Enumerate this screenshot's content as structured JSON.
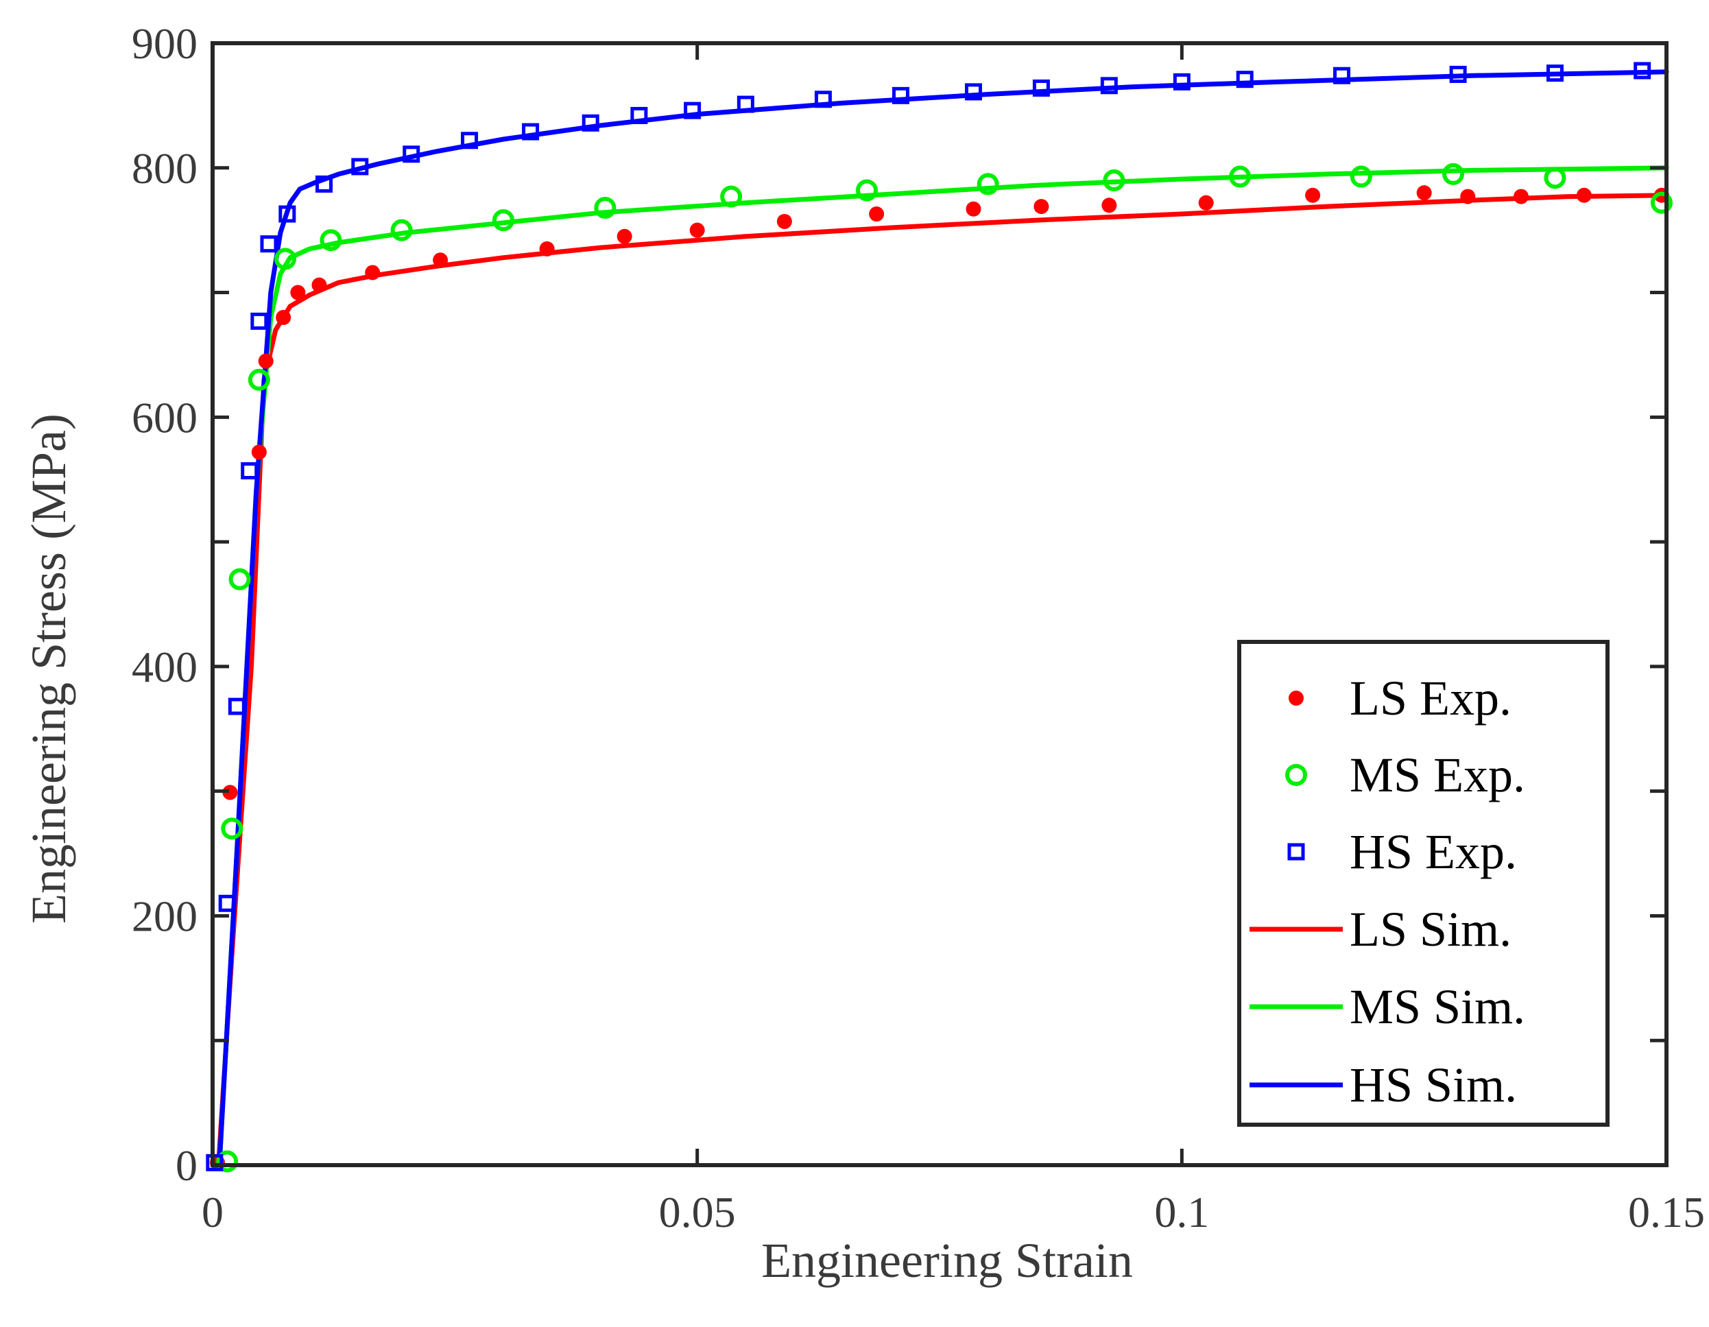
{
  "chart_data": {
    "type": "line",
    "xlabel": "Engineering Strain",
    "ylabel": "Engineering Stress (MPa)",
    "xlim": [
      0,
      0.15
    ],
    "ylim": [
      0,
      900
    ],
    "xticks": [
      0,
      0.05,
      0.1,
      0.15
    ],
    "xtick_labels": [
      "0",
      "0.05",
      "0.1",
      "0.15"
    ],
    "yticks": [
      0,
      200,
      400,
      600,
      800
    ],
    "ytick_labels": [
      "0",
      "200",
      "400",
      "600",
      "800"
    ],
    "y_top_label": "900",
    "y_minor_ticks": [
      100,
      300,
      500,
      700
    ],
    "legend_position": "bottom-right",
    "colors": {
      "LS": "#ff0000",
      "MS": "#00ee00",
      "HS": "#0000ff"
    },
    "series": [
      {
        "name": "LS Exp.",
        "kind": "scatter",
        "marker": "filled-circle",
        "color": "#ff0000",
        "x": [
          0.0005,
          0.0018,
          0.0048,
          0.0055,
          0.0073,
          0.0088,
          0.011,
          0.0165,
          0.0235,
          0.0345,
          0.0425,
          0.05,
          0.059,
          0.0685,
          0.0785,
          0.0855,
          0.0925,
          0.1025,
          0.1135,
          0.125,
          0.1295,
          0.135,
          0.1415,
          0.1495
        ],
        "y": [
          2,
          299,
          572,
          645,
          680,
          700,
          706,
          716,
          726,
          735,
          745,
          750,
          757,
          763,
          767,
          769,
          770,
          772,
          778,
          780,
          777,
          777,
          778,
          778
        ]
      },
      {
        "name": "MS Exp.",
        "kind": "scatter",
        "marker": "open-circle",
        "color": "#00ee00",
        "x": [
          0.0015,
          0.002,
          0.0028,
          0.0048,
          0.0075,
          0.0122,
          0.0195,
          0.03,
          0.0405,
          0.0535,
          0.0675,
          0.08,
          0.093,
          0.106,
          0.1185,
          0.128,
          0.1385,
          0.1495
        ],
        "y": [
          3,
          270,
          470,
          630,
          727,
          742,
          750,
          758,
          768,
          777,
          782,
          787,
          790,
          793,
          793,
          795,
          792,
          772
        ]
      },
      {
        "name": "HS Exp.",
        "kind": "scatter",
        "marker": "open-square",
        "color": "#0000ff",
        "x": [
          0.0002,
          0.0015,
          0.0025,
          0.0038,
          0.0048,
          0.0058,
          0.0077,
          0.0115,
          0.0152,
          0.0205,
          0.0265,
          0.0328,
          0.039,
          0.044,
          0.0495,
          0.055,
          0.063,
          0.071,
          0.0785,
          0.0855,
          0.0925,
          0.1,
          0.1065,
          0.1165,
          0.1285,
          0.1385,
          0.1475
        ],
        "y": [
          2,
          210,
          368,
          557,
          677,
          739,
          763,
          787,
          801,
          811,
          822,
          829,
          836,
          842,
          846,
          851,
          855,
          858,
          861,
          864,
          866,
          869,
          871,
          874,
          875,
          876,
          878
        ]
      },
      {
        "name": "LS Sim.",
        "kind": "line",
        "color": "#ff0000",
        "x": [
          0.0006,
          0.002,
          0.004,
          0.0053,
          0.0065,
          0.008,
          0.01,
          0.013,
          0.017,
          0.023,
          0.03,
          0.04,
          0.055,
          0.07,
          0.085,
          0.1,
          0.115,
          0.13,
          0.14,
          0.15
        ],
        "y": [
          0,
          170,
          400,
          630,
          670,
          689,
          698,
          708,
          714,
          721,
          728,
          736,
          745,
          752,
          758,
          763,
          769,
          774,
          777,
          778
        ]
      },
      {
        "name": "MS Sim.",
        "kind": "line",
        "color": "#00ee00",
        "x": [
          0.0007,
          0.0025,
          0.0045,
          0.006,
          0.007,
          0.008,
          0.01,
          0.013,
          0.02,
          0.03,
          0.04,
          0.055,
          0.07,
          0.085,
          0.1,
          0.115,
          0.13,
          0.14,
          0.15
        ],
        "y": [
          0,
          250,
          540,
          680,
          715,
          728,
          735,
          740,
          748,
          756,
          764,
          772,
          779,
          786,
          791,
          795,
          798,
          799,
          800
        ]
      },
      {
        "name": "HS Sim.",
        "kind": "line",
        "color": "#0000ff",
        "x": [
          0.0007,
          0.0025,
          0.0045,
          0.006,
          0.007,
          0.008,
          0.009,
          0.0105,
          0.013,
          0.017,
          0.023,
          0.03,
          0.04,
          0.05,
          0.065,
          0.08,
          0.095,
          0.11,
          0.13,
          0.15
        ],
        "y": [
          0,
          250,
          540,
          700,
          748,
          772,
          783,
          788,
          795,
          803,
          813,
          823,
          834,
          843,
          852,
          859,
          865,
          869,
          874,
          877
        ]
      }
    ]
  }
}
